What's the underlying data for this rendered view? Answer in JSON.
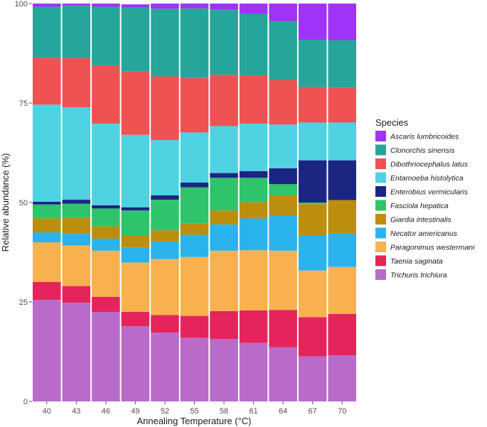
{
  "chart_data": {
    "type": "bar",
    "stacked": true,
    "title": "",
    "xlabel": "Annealing Temperature (°C)",
    "ylabel": "Relative abundance (%)",
    "ylim": [
      0,
      100
    ],
    "yticks": [
      "0",
      "25",
      "50",
      "75",
      "100"
    ],
    "grid": false,
    "legend_title": "Species",
    "legend_position": "right",
    "categories": [
      "40",
      "43",
      "46",
      "49",
      "52",
      "55",
      "58",
      "61",
      "64",
      "67",
      "70"
    ],
    "series": [
      {
        "name": "Trichuris trichiura",
        "color": "#B86BC9",
        "values": [
          25.5,
          24.8,
          22.5,
          18.9,
          17.3,
          16.0,
          15.7,
          14.7,
          13.6,
          11.3,
          11.6
        ]
      },
      {
        "name": "Taenia saginata",
        "color": "#E4245A",
        "values": [
          4.5,
          4.2,
          3.8,
          3.6,
          4.4,
          5.5,
          7.0,
          8.2,
          9.4,
          9.9,
          10.4
        ]
      },
      {
        "name": "Paragonimus westermani",
        "color": "#F9B14F",
        "values": [
          10.0,
          10.2,
          11.6,
          12.4,
          14.1,
          14.8,
          15.2,
          15.1,
          14.9,
          11.7,
          11.8
        ]
      },
      {
        "name": "Necator americanus",
        "color": "#2BB3EE",
        "values": [
          2.5,
          2.9,
          3.0,
          3.8,
          4.4,
          5.6,
          6.6,
          8.0,
          8.8,
          8.9,
          8.4
        ]
      },
      {
        "name": "Giardia intestinalis",
        "color": "#BB8E0D",
        "values": [
          3.5,
          4.1,
          3.1,
          3.0,
          2.8,
          2.8,
          3.5,
          4.1,
          5.1,
          7.8,
          8.4
        ]
      },
      {
        "name": "Fasciola hepatica",
        "color": "#2EC46C",
        "values": [
          3.5,
          3.5,
          4.5,
          6.3,
          7.7,
          9.1,
          8.2,
          6.1,
          2.8,
          0.4,
          0.0
        ]
      },
      {
        "name": "Enterobius vermicularis",
        "color": "#1B2582",
        "values": [
          0.7,
          1.0,
          0.8,
          0.8,
          1.1,
          1.2,
          1.2,
          1.7,
          4.0,
          10.6,
          10.0
        ]
      },
      {
        "name": "Entamoeba histolytica",
        "color": "#4FD2E1",
        "values": [
          24.4,
          23.2,
          20.5,
          18.2,
          13.9,
          12.6,
          11.8,
          11.9,
          11.0,
          9.5,
          9.5
        ]
      },
      {
        "name": "Dibothriocephalus latus",
        "color": "#EF5252",
        "values": [
          11.8,
          12.4,
          14.6,
          15.9,
          16.0,
          13.7,
          12.9,
          12.2,
          11.2,
          8.9,
          8.8
        ]
      },
      {
        "name": "Clonorchis sinensis",
        "color": "#26A59A",
        "values": [
          12.8,
          13.2,
          14.8,
          16.1,
          17.0,
          17.5,
          16.4,
          15.4,
          14.8,
          11.9,
          11.9
        ]
      },
      {
        "name": "Ascaris lumbricoides",
        "color": "#9F33F7",
        "values": [
          0.8,
          0.5,
          0.8,
          0.8,
          1.3,
          1.2,
          1.5,
          2.6,
          4.4,
          9.1,
          9.2
        ]
      }
    ],
    "legend_order": [
      "Ascaris lumbricoides",
      "Clonorchis sinensis",
      "Dibothriocephalus latus",
      "Entamoeba histolytica",
      "Enterobius vermicularis",
      "Fasciola hepatica",
      "Giardia intestinalis",
      "Necator americanus",
      "Paragonimus westermani",
      "Taenia saginata",
      "Trichuris trichiura"
    ]
  }
}
